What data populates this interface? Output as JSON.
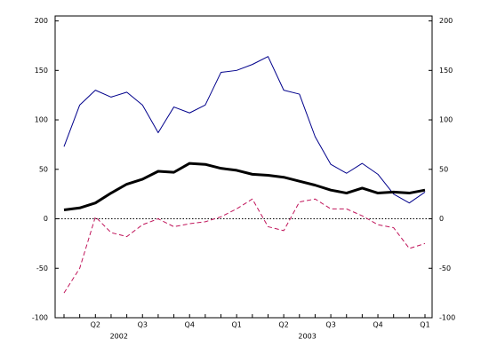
{
  "chart_data": {
    "type": "line",
    "categories": [
      null,
      null,
      "Q2",
      null,
      null,
      "Q3",
      null,
      null,
      "Q4",
      null,
      null,
      "Q1",
      null,
      null,
      "Q2",
      null,
      null,
      "Q3",
      null,
      null,
      "Q4",
      null,
      null,
      "Q1"
    ],
    "year_labels": [
      "2002",
      "2003"
    ],
    "series": [
      {
        "color": "#00008b",
        "width": 1,
        "dash": false,
        "values": [
          73,
          115,
          130,
          123,
          128,
          115,
          87,
          113,
          107,
          115,
          148,
          150,
          156,
          164,
          130,
          126,
          83,
          55,
          46,
          56,
          45,
          25,
          16,
          27
        ]
      },
      {
        "color": "#000000",
        "width": 3,
        "dash": false,
        "values": [
          9,
          11,
          16,
          26,
          35,
          40,
          48,
          47,
          56,
          55,
          51,
          49,
          45,
          44,
          42,
          38,
          34,
          29,
          26,
          31,
          26,
          27,
          26,
          29
        ]
      },
      {
        "color": "#c0145a",
        "width": 1,
        "dash": true,
        "values": [
          -75,
          -50,
          2,
          -14,
          -18,
          -6,
          0,
          -8,
          -5,
          -3,
          2,
          10,
          20,
          -8,
          -12,
          17,
          20,
          10,
          10,
          3,
          -6,
          -9,
          -30,
          -25
        ]
      }
    ],
    "ylim": [
      -100,
      205
    ],
    "yticks": [
      -100,
      -50,
      0,
      50,
      100,
      150,
      200
    ],
    "zero_line": true
  }
}
